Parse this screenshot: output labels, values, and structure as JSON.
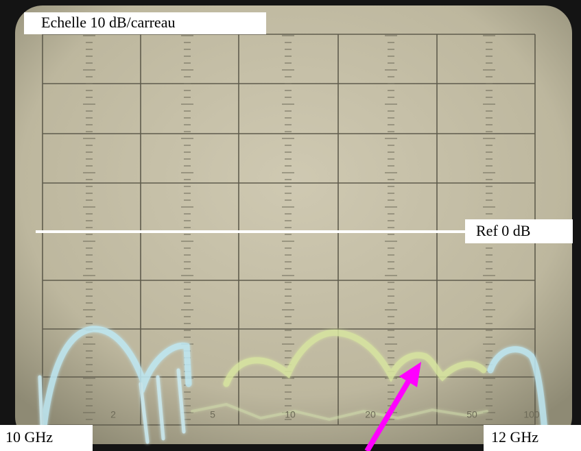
{
  "annotations": {
    "scale": "Echelle 10 dB/carreau",
    "reference": "Ref 0 dB",
    "start_frequency": "10 GHz",
    "stop_frequency": "12 GHz"
  },
  "screen": {
    "scale_labels": [
      "2",
      "5",
      "10",
      "20",
      "50",
      "100"
    ]
  }
}
